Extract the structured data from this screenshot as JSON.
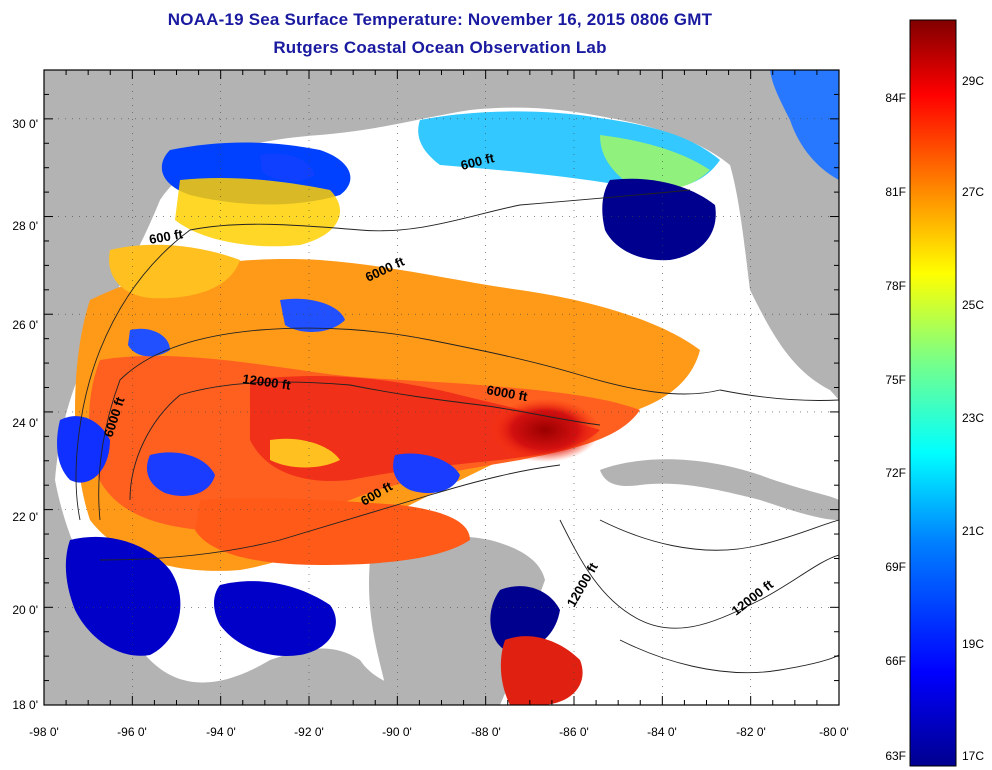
{
  "header": {
    "title": "NOAA-19 Sea Surface Temperature:  November 16, 2015 0806 GMT",
    "subtitle": "Rutgers Coastal Ocean Observation Lab"
  },
  "map": {
    "lon_range": [
      -98,
      -80
    ],
    "lat_range": [
      18,
      31
    ],
    "x_tick_labels": [
      "-98 0'",
      "-96 0'",
      "-94 0'",
      "-92 0'",
      "-90 0'",
      "-88 0'",
      "-86 0'",
      "-84 0'",
      "-82 0'",
      "-80 0'"
    ],
    "y_tick_labels": [
      "18 0'",
      "20 0'",
      "22 0'",
      "24 0'",
      "26 0'",
      "28 0'",
      "30 0'"
    ],
    "contour_labels": [
      "600 ft",
      "600 ft",
      "6000 ft",
      "12000 ft",
      "6000 ft",
      "6000 ft",
      "600 ft",
      "12000 ft",
      "12000 ft"
    ],
    "colors": {
      "land": "#b3b3b3",
      "cloud": "#ffffff"
    }
  },
  "colorbar": {
    "fahrenheit_labels": [
      "84F",
      "81F",
      "78F",
      "75F",
      "72F",
      "69F",
      "66F",
      "63F"
    ],
    "celsius_labels": [
      "29C",
      "27C",
      "25C",
      "23C",
      "21C",
      "19C",
      "17C"
    ],
    "colors": [
      "#00008f",
      "#0000ff",
      "#0080ff",
      "#00ffff",
      "#80ff80",
      "#ffff00",
      "#ff8000",
      "#ff0000",
      "#800000"
    ]
  }
}
